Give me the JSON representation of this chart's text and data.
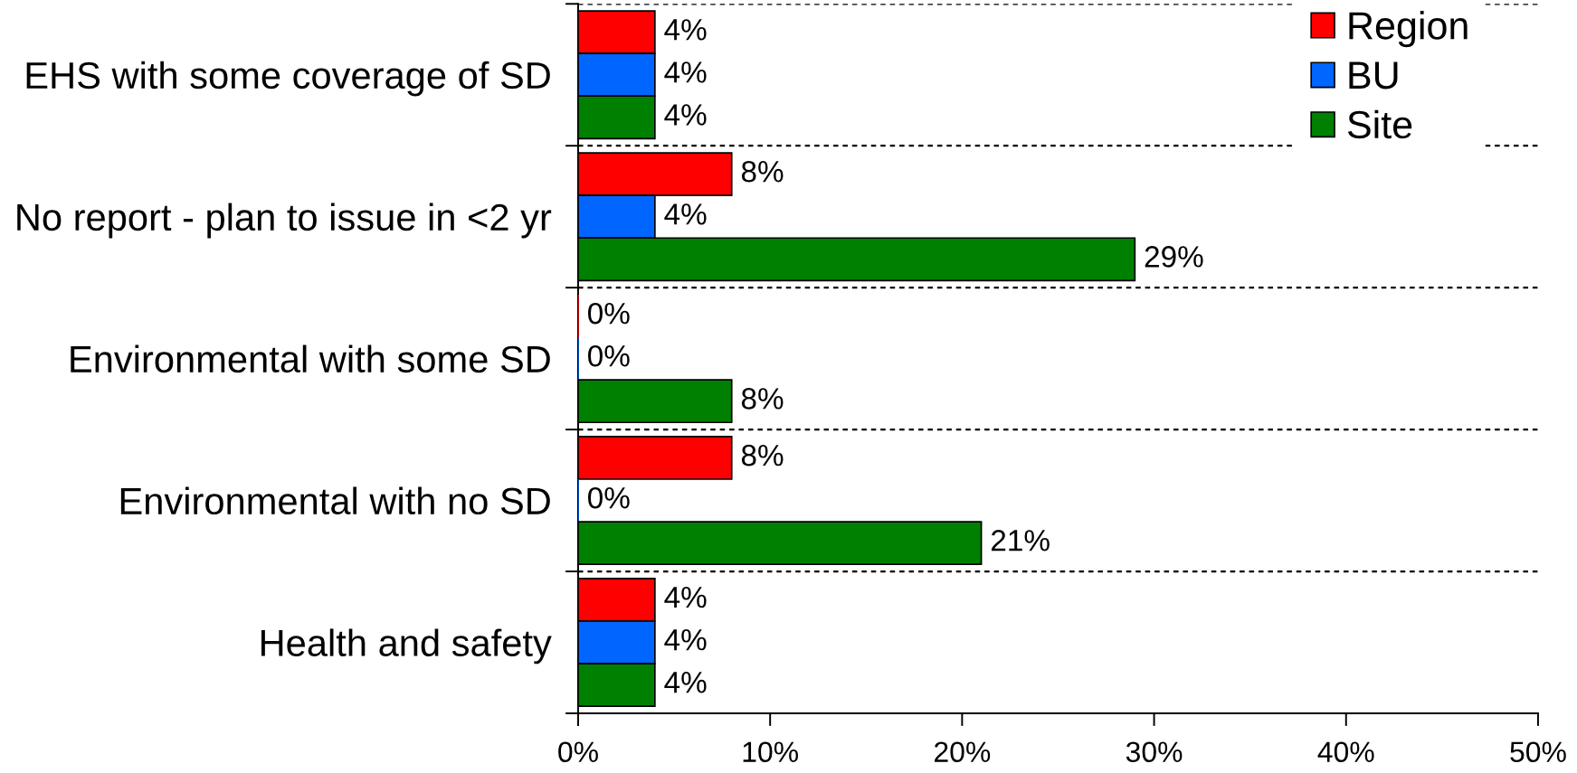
{
  "chart_data": {
    "type": "bar",
    "orientation": "horizontal",
    "categories": [
      "EHS with some coverage of SD",
      "No report - plan to issue in <2 yr",
      "Environmental with some SD",
      "Environmental with no SD",
      "Health and safety"
    ],
    "series": [
      {
        "name": "Region",
        "color": "#ff0000",
        "values": [
          4,
          8,
          0,
          8,
          4
        ],
        "value_labels": [
          "4%",
          "8%",
          "0%",
          "8%",
          "4%"
        ]
      },
      {
        "name": "BU",
        "color": "#0066ff",
        "values": [
          4,
          4,
          0,
          0,
          4
        ],
        "value_labels": [
          "4%",
          "4%",
          "0%",
          "0%",
          "4%"
        ]
      },
      {
        "name": "Site",
        "color": "#008000",
        "values": [
          4,
          29,
          8,
          21,
          4
        ],
        "value_labels": [
          "4%",
          "29%",
          "8%",
          "21%",
          "4%"
        ]
      }
    ],
    "xlim": [
      0,
      50
    ],
    "xticks": [
      {
        "value": 0,
        "label": "0%"
      },
      {
        "value": 10,
        "label": "10%"
      },
      {
        "value": 20,
        "label": "20%"
      },
      {
        "value": 30,
        "label": "30%"
      },
      {
        "value": 40,
        "label": "40%"
      },
      {
        "value": 50,
        "label": "50%"
      }
    ],
    "grid": "y",
    "legend": "top right"
  }
}
